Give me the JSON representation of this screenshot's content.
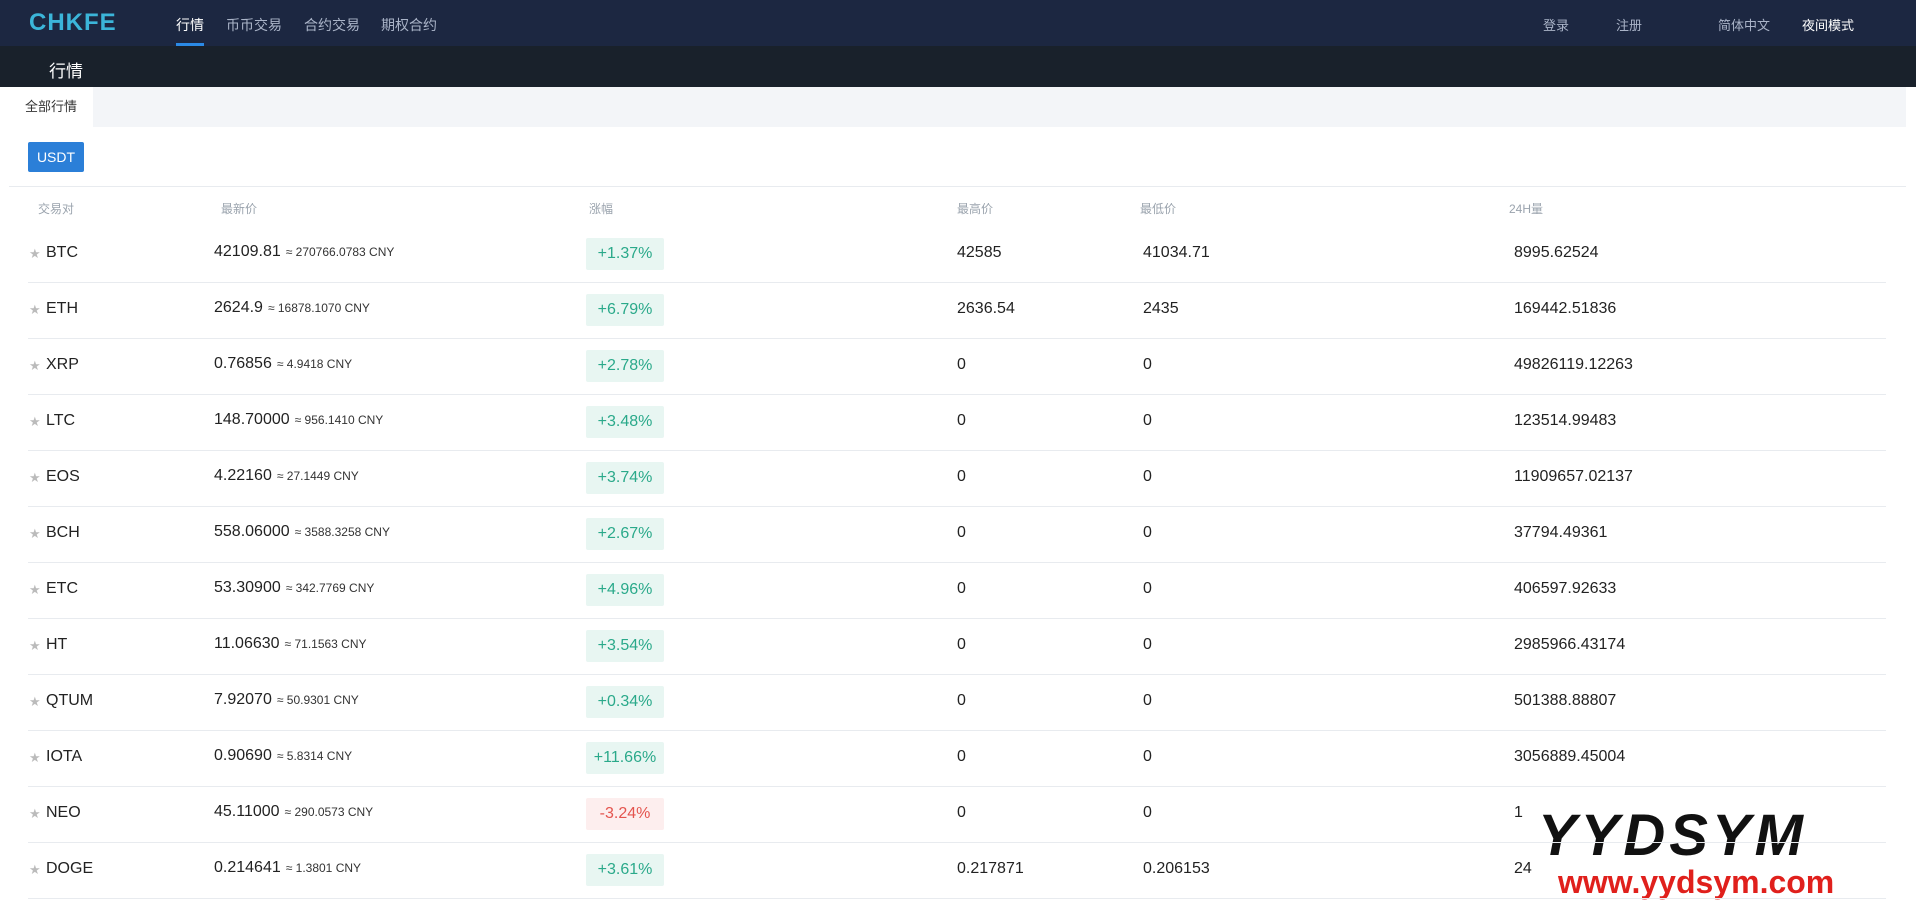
{
  "nav": {
    "logo": "CHKFE",
    "links": [
      "行情",
      "币币交易",
      "合约交易",
      "期权合约"
    ],
    "right": [
      "登录",
      "注册",
      "简体中文",
      "夜间模式"
    ]
  },
  "subnav": {
    "title": "行情"
  },
  "tabs": [
    "全部行情"
  ],
  "filter": "USDT",
  "table": {
    "header": [
      "交易对",
      "最新价",
      "涨幅",
      "最高价",
      "最低价",
      "24H量"
    ],
    "rows": [
      [
        "BTC",
        "42109.81",
        "≈ 270766.0783 CNY",
        "+1.37%",
        "42585",
        "41034.71",
        "8995.62524"
      ],
      [
        "ETH",
        "2624.9",
        "≈ 16878.1070 CNY",
        "+6.79%",
        "2636.54",
        "2435",
        "169442.51836"
      ],
      [
        "XRP",
        "0.76856",
        "≈ 4.9418 CNY",
        "+2.78%",
        "0",
        "0",
        "49826119.12263"
      ],
      [
        "LTC",
        "148.70000",
        "≈ 956.1410 CNY",
        "+3.48%",
        "0",
        "0",
        "123514.99483"
      ],
      [
        "EOS",
        "4.22160",
        "≈ 27.1449 CNY",
        "+3.74%",
        "0",
        "0",
        "11909657.02137"
      ],
      [
        "BCH",
        "558.06000",
        "≈ 3588.3258 CNY",
        "+2.67%",
        "0",
        "0",
        "37794.49361"
      ],
      [
        "ETC",
        "53.30900",
        "≈ 342.7769 CNY",
        "+4.96%",
        "0",
        "0",
        "406597.92633"
      ],
      [
        "HT",
        "11.06630",
        "≈ 71.1563 CNY",
        "+3.54%",
        "0",
        "0",
        "2985966.43174"
      ],
      [
        "QTUM",
        "7.92070",
        "≈ 50.9301 CNY",
        "+0.34%",
        "0",
        "0",
        "501388.88807"
      ],
      [
        "IOTA",
        "0.90690",
        "≈ 5.8314 CNY",
        "+11.66%",
        "0",
        "0",
        "3056889.45004"
      ],
      [
        "NEO",
        "45.11000",
        "≈ 290.0573 CNY",
        "-3.24%",
        "0",
        "0",
        "1"
      ],
      [
        "DOGE",
        "0.214641",
        "≈ 1.3801 CNY",
        "+3.61%",
        "0.217871",
        "0.206153",
        "24"
      ]
    ]
  },
  "watermark": {
    "title": "YYDSYM",
    "url": "www.yydsym.com"
  }
}
